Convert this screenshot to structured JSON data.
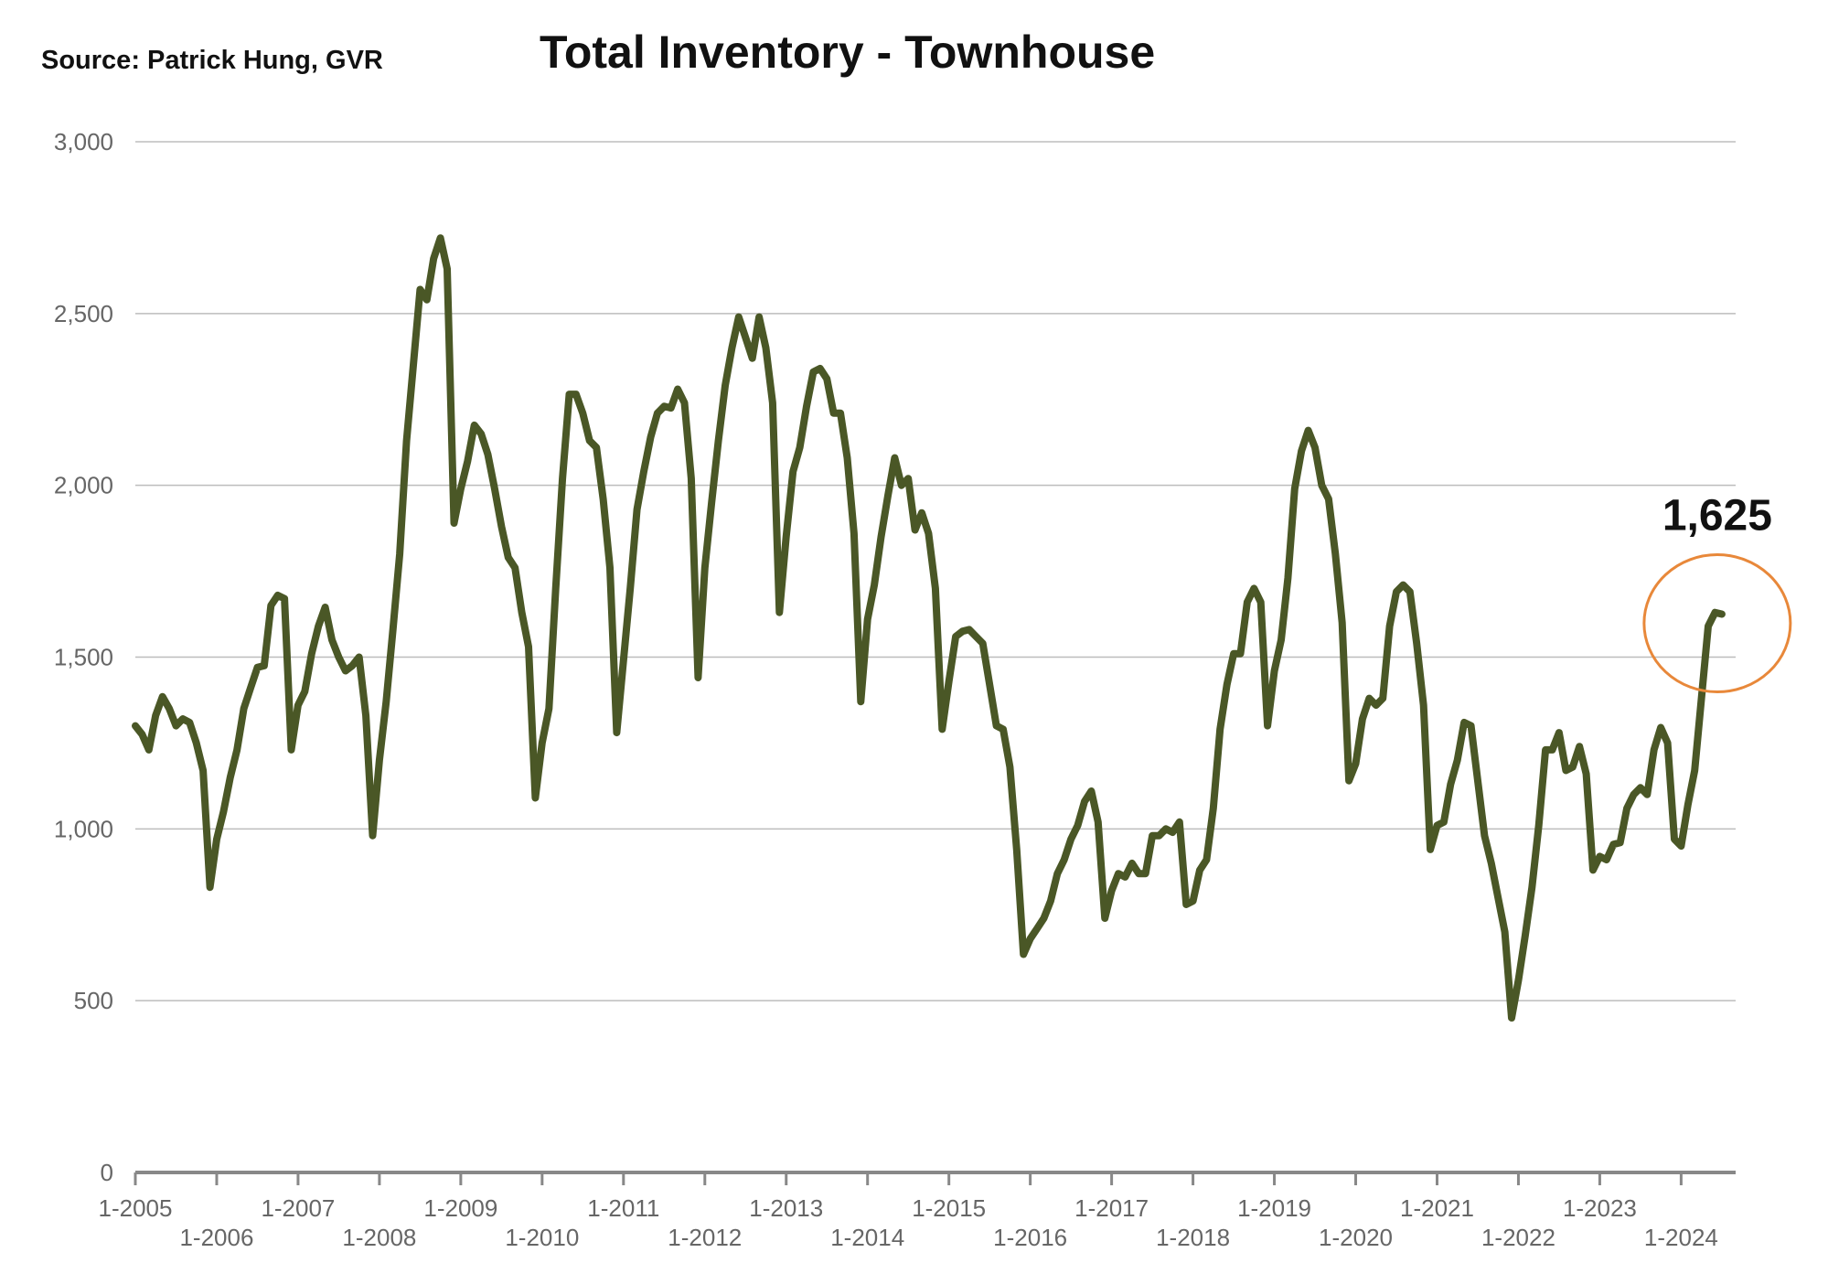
{
  "source": "Source:  Patrick Hung, GVR",
  "title": "Total Inventory - Townhouse",
  "callout": {
    "label": "1,625",
    "value": 1625,
    "circle_color": "#e8883a"
  },
  "chart_data": {
    "type": "line",
    "title": "Total Inventory - Townhouse",
    "xlabel": "",
    "ylabel": "",
    "ylim": [
      0,
      3000
    ],
    "xlim": [
      "2005-01",
      "2024-06"
    ],
    "grid": true,
    "legend": "none",
    "line_color": "#4a5726",
    "y_ticks": [
      0,
      500,
      1000,
      1500,
      2000,
      2500,
      3000
    ],
    "y_tick_labels": [
      "0",
      "500",
      "1,000",
      "1,500",
      "2,000",
      "2,500",
      "3,000"
    ],
    "x_tick_labels": [
      "1-2005",
      "1-2006",
      "1-2007",
      "1-2008",
      "1-2009",
      "1-2010",
      "1-2011",
      "1-2012",
      "1-2013",
      "1-2014",
      "1-2015",
      "1-2016",
      "1-2017",
      "1-2018",
      "1-2019",
      "1-2020",
      "1-2021",
      "1-2022",
      "1-2023",
      "1-2024"
    ],
    "series": [
      {
        "values": [
          [
            "2005-01",
            1300
          ],
          [
            "2005-02",
            1275
          ],
          [
            "2005-03",
            1230
          ],
          [
            "2005-04",
            1330
          ],
          [
            "2005-05",
            1385
          ],
          [
            "2005-06",
            1350
          ],
          [
            "2005-07",
            1300
          ],
          [
            "2005-08",
            1320
          ],
          [
            "2005-09",
            1310
          ],
          [
            "2005-10",
            1250
          ],
          [
            "2005-11",
            1170
          ],
          [
            "2005-12",
            830
          ],
          [
            "2006-01",
            970
          ],
          [
            "2006-02",
            1050
          ],
          [
            "2006-03",
            1150
          ],
          [
            "2006-04",
            1230
          ],
          [
            "2006-05",
            1350
          ],
          [
            "2006-06",
            1410
          ],
          [
            "2006-07",
            1470
          ],
          [
            "2006-08",
            1475
          ],
          [
            "2006-09",
            1650
          ],
          [
            "2006-10",
            1680
          ],
          [
            "2006-11",
            1670
          ],
          [
            "2006-12",
            1230
          ],
          [
            "2007-01",
            1360
          ],
          [
            "2007-02",
            1400
          ],
          [
            "2007-03",
            1510
          ],
          [
            "2007-04",
            1590
          ],
          [
            "2007-05",
            1645
          ],
          [
            "2007-06",
            1550
          ],
          [
            "2007-07",
            1500
          ],
          [
            "2007-08",
            1460
          ],
          [
            "2007-09",
            1475
          ],
          [
            "2007-10",
            1500
          ],
          [
            "2007-11",
            1330
          ],
          [
            "2007-12",
            980
          ],
          [
            "2008-01",
            1200
          ],
          [
            "2008-02",
            1370
          ],
          [
            "2008-03",
            1580
          ],
          [
            "2008-04",
            1800
          ],
          [
            "2008-05",
            2130
          ],
          [
            "2008-06",
            2350
          ],
          [
            "2008-07",
            2570
          ],
          [
            "2008-08",
            2540
          ],
          [
            "2008-09",
            2660
          ],
          [
            "2008-10",
            2720
          ],
          [
            "2008-11",
            2630
          ],
          [
            "2008-12",
            1890
          ],
          [
            "2009-01",
            1990
          ],
          [
            "2009-02",
            2070
          ],
          [
            "2009-03",
            2175
          ],
          [
            "2009-04",
            2150
          ],
          [
            "2009-05",
            2090
          ],
          [
            "2009-06",
            1990
          ],
          [
            "2009-07",
            1880
          ],
          [
            "2009-08",
            1790
          ],
          [
            "2009-09",
            1760
          ],
          [
            "2009-10",
            1630
          ],
          [
            "2009-11",
            1530
          ],
          [
            "2009-12",
            1090
          ],
          [
            "2010-01",
            1250
          ],
          [
            "2010-02",
            1350
          ],
          [
            "2010-03",
            1700
          ],
          [
            "2010-04",
            2020
          ],
          [
            "2010-05",
            2265
          ],
          [
            "2010-06",
            2265
          ],
          [
            "2010-07",
            2210
          ],
          [
            "2010-08",
            2130
          ],
          [
            "2010-09",
            2110
          ],
          [
            "2010-10",
            1960
          ],
          [
            "2010-11",
            1760
          ],
          [
            "2010-12",
            1280
          ],
          [
            "2011-01",
            1490
          ],
          [
            "2011-02",
            1700
          ],
          [
            "2011-03",
            1930
          ],
          [
            "2011-04",
            2040
          ],
          [
            "2011-05",
            2140
          ],
          [
            "2011-06",
            2210
          ],
          [
            "2011-07",
            2230
          ],
          [
            "2011-08",
            2225
          ],
          [
            "2011-09",
            2280
          ],
          [
            "2011-10",
            2240
          ],
          [
            "2011-11",
            2020
          ],
          [
            "2011-12",
            1440
          ],
          [
            "2012-01",
            1760
          ],
          [
            "2012-02",
            1950
          ],
          [
            "2012-03",
            2130
          ],
          [
            "2012-04",
            2290
          ],
          [
            "2012-05",
            2400
          ],
          [
            "2012-06",
            2490
          ],
          [
            "2012-07",
            2430
          ],
          [
            "2012-08",
            2370
          ],
          [
            "2012-09",
            2490
          ],
          [
            "2012-10",
            2400
          ],
          [
            "2012-11",
            2240
          ],
          [
            "2012-12",
            1630
          ],
          [
            "2013-01",
            1850
          ],
          [
            "2013-02",
            2040
          ],
          [
            "2013-03",
            2110
          ],
          [
            "2013-04",
            2230
          ],
          [
            "2013-05",
            2330
          ],
          [
            "2013-06",
            2340
          ],
          [
            "2013-07",
            2310
          ],
          [
            "2013-08",
            2210
          ],
          [
            "2013-09",
            2210
          ],
          [
            "2013-10",
            2080
          ],
          [
            "2013-11",
            1860
          ],
          [
            "2013-12",
            1370
          ],
          [
            "2014-01",
            1610
          ],
          [
            "2014-02",
            1710
          ],
          [
            "2014-03",
            1850
          ],
          [
            "2014-04",
            1970
          ],
          [
            "2014-05",
            2080
          ],
          [
            "2014-06",
            2000
          ],
          [
            "2014-07",
            2020
          ],
          [
            "2014-08",
            1870
          ],
          [
            "2014-09",
            1920
          ],
          [
            "2014-10",
            1860
          ],
          [
            "2014-11",
            1700
          ],
          [
            "2014-12",
            1290
          ],
          [
            "2015-01",
            1430
          ],
          [
            "2015-02",
            1560
          ],
          [
            "2015-03",
            1575
          ],
          [
            "2015-04",
            1580
          ],
          [
            "2015-05",
            1560
          ],
          [
            "2015-06",
            1540
          ],
          [
            "2015-07",
            1420
          ],
          [
            "2015-08",
            1300
          ],
          [
            "2015-09",
            1290
          ],
          [
            "2015-10",
            1180
          ],
          [
            "2015-11",
            940
          ],
          [
            "2015-12",
            635
          ],
          [
            "2016-01",
            680
          ],
          [
            "2016-02",
            710
          ],
          [
            "2016-03",
            740
          ],
          [
            "2016-04",
            790
          ],
          [
            "2016-05",
            870
          ],
          [
            "2016-06",
            910
          ],
          [
            "2016-07",
            970
          ],
          [
            "2016-08",
            1010
          ],
          [
            "2016-09",
            1080
          ],
          [
            "2016-10",
            1110
          ],
          [
            "2016-11",
            1020
          ],
          [
            "2016-12",
            740
          ],
          [
            "2017-01",
            820
          ],
          [
            "2017-02",
            870
          ],
          [
            "2017-03",
            860
          ],
          [
            "2017-04",
            900
          ],
          [
            "2017-05",
            870
          ],
          [
            "2017-06",
            870
          ],
          [
            "2017-07",
            980
          ],
          [
            "2017-08",
            980
          ],
          [
            "2017-09",
            1000
          ],
          [
            "2017-10",
            990
          ],
          [
            "2017-11",
            1020
          ],
          [
            "2017-12",
            780
          ],
          [
            "2018-01",
            790
          ],
          [
            "2018-02",
            880
          ],
          [
            "2018-03",
            910
          ],
          [
            "2018-04",
            1060
          ],
          [
            "2018-05",
            1290
          ],
          [
            "2018-06",
            1420
          ],
          [
            "2018-07",
            1510
          ],
          [
            "2018-08",
            1510
          ],
          [
            "2018-09",
            1660
          ],
          [
            "2018-10",
            1700
          ],
          [
            "2018-11",
            1660
          ],
          [
            "2018-12",
            1300
          ],
          [
            "2019-01",
            1460
          ],
          [
            "2019-02",
            1550
          ],
          [
            "2019-03",
            1730
          ],
          [
            "2019-04",
            1990
          ],
          [
            "2019-05",
            2100
          ],
          [
            "2019-06",
            2160
          ],
          [
            "2019-07",
            2110
          ],
          [
            "2019-08",
            2000
          ],
          [
            "2019-09",
            1960
          ],
          [
            "2019-10",
            1800
          ],
          [
            "2019-11",
            1600
          ],
          [
            "2019-12",
            1140
          ],
          [
            "2020-01",
            1190
          ],
          [
            "2020-02",
            1320
          ],
          [
            "2020-03",
            1380
          ],
          [
            "2020-04",
            1360
          ],
          [
            "2020-05",
            1380
          ],
          [
            "2020-06",
            1590
          ],
          [
            "2020-07",
            1690
          ],
          [
            "2020-08",
            1710
          ],
          [
            "2020-09",
            1690
          ],
          [
            "2020-10",
            1540
          ],
          [
            "2020-11",
            1360
          ],
          [
            "2020-12",
            940
          ],
          [
            "2021-01",
            1010
          ],
          [
            "2021-02",
            1020
          ],
          [
            "2021-03",
            1130
          ],
          [
            "2021-04",
            1200
          ],
          [
            "2021-05",
            1310
          ],
          [
            "2021-06",
            1300
          ],
          [
            "2021-07",
            1140
          ],
          [
            "2021-08",
            980
          ],
          [
            "2021-09",
            900
          ],
          [
            "2021-10",
            800
          ],
          [
            "2021-11",
            700
          ],
          [
            "2021-12",
            450
          ],
          [
            "2022-01",
            560
          ],
          [
            "2022-02",
            690
          ],
          [
            "2022-03",
            830
          ],
          [
            "2022-04",
            1010
          ],
          [
            "2022-05",
            1230
          ],
          [
            "2022-06",
            1230
          ],
          [
            "2022-07",
            1280
          ],
          [
            "2022-08",
            1170
          ],
          [
            "2022-09",
            1180
          ],
          [
            "2022-10",
            1240
          ],
          [
            "2022-11",
            1160
          ],
          [
            "2022-12",
            880
          ],
          [
            "2023-01",
            920
          ],
          [
            "2023-02",
            910
          ],
          [
            "2023-03",
            955
          ],
          [
            "2023-04",
            960
          ],
          [
            "2023-05",
            1060
          ],
          [
            "2023-06",
            1100
          ],
          [
            "2023-07",
            1120
          ],
          [
            "2023-08",
            1100
          ],
          [
            "2023-09",
            1230
          ],
          [
            "2023-10",
            1295
          ],
          [
            "2023-11",
            1250
          ],
          [
            "2023-12",
            970
          ],
          [
            "2024-01",
            950
          ],
          [
            "2024-02",
            1070
          ],
          [
            "2024-03",
            1170
          ],
          [
            "2024-04",
            1380
          ],
          [
            "2024-05",
            1590
          ],
          [
            "2024-06",
            1630
          ],
          [
            "2024-07",
            1625
          ]
        ]
      }
    ]
  }
}
